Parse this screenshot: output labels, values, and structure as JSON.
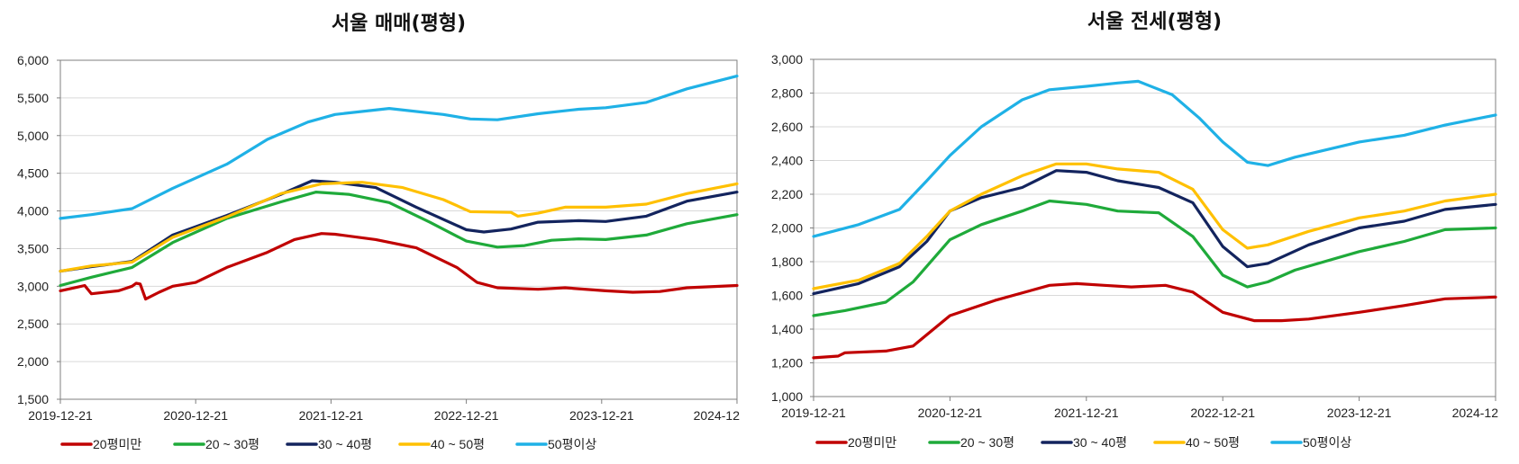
{
  "chart_data": [
    {
      "type": "line",
      "title": "서울 매매(평형)",
      "xlabel": "",
      "ylabel": "",
      "ylim": [
        1500,
        6000
      ],
      "yticks": [
        1500,
        2000,
        2500,
        3000,
        3500,
        4000,
        4500,
        5000,
        5500,
        6000
      ],
      "yticklabels": [
        "1,500",
        "2,000",
        "2,500",
        "3,000",
        "3,500",
        "4,000",
        "4,500",
        "5,000",
        "5,500",
        "6,000"
      ],
      "xlim": [
        2019.97,
        2024.97
      ],
      "xtick_positions": [
        2019.97,
        2020.97,
        2021.97,
        2022.97,
        2023.97,
        2024.97
      ],
      "xticklabels": [
        "2019-12-21",
        "2020-12-21",
        "2021-12-21",
        "2022-12-21",
        "2023-12-21",
        "2024-12"
      ],
      "grid": true,
      "legend_position": "bottom",
      "series": [
        {
          "name": "20평미만",
          "color": "#C00000",
          "x": [
            2019.97,
            2020.1,
            2020.15,
            2020.2,
            2020.4,
            2020.5,
            2020.53,
            2020.56,
            2020.6,
            2020.7,
            2020.8,
            2020.97,
            2021.2,
            2021.5,
            2021.7,
            2021.9,
            2022.0,
            2022.3,
            2022.6,
            2022.9,
            2023.05,
            2023.2,
            2023.5,
            2023.7,
            2024.0,
            2024.2,
            2024.4,
            2024.6,
            2024.97
          ],
          "values": [
            2940,
            2990,
            3010,
            2900,
            2940,
            3000,
            3040,
            3030,
            2830,
            2920,
            3000,
            3050,
            3250,
            3450,
            3620,
            3700,
            3690,
            3620,
            3510,
            3250,
            3050,
            2980,
            2960,
            2980,
            2940,
            2920,
            2930,
            2980,
            3010
          ]
        },
        {
          "name": "20 ~ 30평",
          "color": "#1FAA3A",
          "x": [
            2019.97,
            2020.2,
            2020.5,
            2020.8,
            2021.2,
            2021.6,
            2021.86,
            2022.1,
            2022.4,
            2022.7,
            2022.97,
            2023.2,
            2023.4,
            2023.6,
            2023.8,
            2024.0,
            2024.3,
            2024.6,
            2024.97
          ],
          "values": [
            3010,
            3120,
            3250,
            3580,
            3900,
            4120,
            4250,
            4220,
            4110,
            3850,
            3600,
            3520,
            3540,
            3610,
            3630,
            3620,
            3680,
            3830,
            3950
          ]
        },
        {
          "name": "30 ~ 40평",
          "color": "#13245E",
          "x": [
            2019.97,
            2020.2,
            2020.5,
            2020.8,
            2021.2,
            2021.6,
            2021.83,
            2022.0,
            2022.3,
            2022.6,
            2022.97,
            2023.1,
            2023.3,
            2023.5,
            2023.8,
            2024.0,
            2024.3,
            2024.6,
            2024.97
          ],
          "values": [
            3200,
            3260,
            3330,
            3680,
            3940,
            4220,
            4400,
            4380,
            4310,
            4050,
            3750,
            3720,
            3760,
            3850,
            3870,
            3860,
            3930,
            4130,
            4250
          ]
        },
        {
          "name": "40 ~ 50평",
          "color": "#FFC000",
          "x": [
            2019.97,
            2020.2,
            2020.5,
            2020.8,
            2021.2,
            2021.6,
            2021.9,
            2022.2,
            2022.5,
            2022.8,
            2023.0,
            2023.3,
            2023.35,
            2023.5,
            2023.7,
            2024.0,
            2024.3,
            2024.6,
            2024.97
          ],
          "values": [
            3200,
            3270,
            3320,
            3650,
            3920,
            4230,
            4360,
            4380,
            4310,
            4150,
            3990,
            3980,
            3930,
            3970,
            4050,
            4050,
            4090,
            4230,
            4360
          ]
        },
        {
          "name": "50평이상",
          "color": "#1FB1E6",
          "x": [
            2019.97,
            2020.2,
            2020.5,
            2020.8,
            2021.2,
            2021.5,
            2021.8,
            2022.0,
            2022.4,
            2022.8,
            2023.0,
            2023.2,
            2023.5,
            2023.8,
            2024.0,
            2024.3,
            2024.6,
            2024.97
          ],
          "values": [
            3900,
            3950,
            4030,
            4300,
            4620,
            4950,
            5180,
            5280,
            5360,
            5280,
            5220,
            5210,
            5290,
            5350,
            5370,
            5440,
            5620,
            5790
          ]
        }
      ]
    },
    {
      "type": "line",
      "title": "서울 전세(평형)",
      "xlabel": "",
      "ylabel": "",
      "ylim": [
        1000,
        3000
      ],
      "yticks": [
        1000,
        1200,
        1400,
        1600,
        1800,
        2000,
        2200,
        2400,
        2600,
        2800,
        3000
      ],
      "yticklabels": [
        "1,000",
        "1,200",
        "1,400",
        "1,600",
        "1,800",
        "2,000",
        "2,200",
        "2,400",
        "2,600",
        "2,800",
        "3,000"
      ],
      "xlim": [
        2019.97,
        2024.97
      ],
      "xtick_positions": [
        2019.97,
        2020.97,
        2021.97,
        2022.97,
        2023.97,
        2024.97
      ],
      "xticklabels": [
        "2019-12-21",
        "2020-12-21",
        "2021-12-21",
        "2022-12-21",
        "2023-12-21",
        "2024-12"
      ],
      "grid": true,
      "legend_position": "bottom",
      "series": [
        {
          "name": "20평미만",
          "color": "#C00000",
          "x": [
            2019.97,
            2020.15,
            2020.2,
            2020.5,
            2020.7,
            2020.97,
            2021.3,
            2021.7,
            2021.9,
            2022.1,
            2022.3,
            2022.55,
            2022.75,
            2022.97,
            2023.2,
            2023.4,
            2023.6,
            2023.97,
            2024.3,
            2024.6,
            2024.97
          ],
          "values": [
            1230,
            1240,
            1260,
            1270,
            1300,
            1480,
            1570,
            1660,
            1670,
            1660,
            1650,
            1660,
            1620,
            1500,
            1450,
            1450,
            1460,
            1500,
            1540,
            1580,
            1590
          ]
        },
        {
          "name": "20 ~ 30평",
          "color": "#1FAA3A",
          "x": [
            2019.97,
            2020.2,
            2020.5,
            2020.7,
            2020.97,
            2021.2,
            2021.5,
            2021.7,
            2021.97,
            2022.2,
            2022.5,
            2022.75,
            2022.97,
            2023.15,
            2023.3,
            2023.5,
            2023.97,
            2024.3,
            2024.6,
            2024.97
          ],
          "values": [
            1480,
            1510,
            1560,
            1680,
            1930,
            2020,
            2100,
            2160,
            2140,
            2100,
            2090,
            1950,
            1720,
            1650,
            1680,
            1750,
            1860,
            1920,
            1990,
            2000
          ]
        },
        {
          "name": "30 ~ 40평",
          "color": "#13245E",
          "x": [
            2019.97,
            2020.3,
            2020.6,
            2020.8,
            2020.97,
            2021.2,
            2021.5,
            2021.75,
            2021.97,
            2022.2,
            2022.5,
            2022.75,
            2022.97,
            2023.15,
            2023.3,
            2023.6,
            2023.97,
            2024.3,
            2024.6,
            2024.97
          ],
          "values": [
            1610,
            1670,
            1770,
            1920,
            2100,
            2180,
            2240,
            2340,
            2330,
            2280,
            2240,
            2150,
            1890,
            1770,
            1790,
            1900,
            2000,
            2040,
            2110,
            2140
          ]
        },
        {
          "name": "40 ~ 50평",
          "color": "#FFC000",
          "x": [
            2019.97,
            2020.3,
            2020.6,
            2020.8,
            2020.97,
            2021.2,
            2021.5,
            2021.75,
            2021.97,
            2022.2,
            2022.5,
            2022.75,
            2022.97,
            2023.15,
            2023.3,
            2023.6,
            2023.97,
            2024.3,
            2024.6,
            2024.97
          ],
          "values": [
            1640,
            1690,
            1790,
            1950,
            2100,
            2200,
            2310,
            2380,
            2380,
            2350,
            2330,
            2230,
            1990,
            1880,
            1900,
            1980,
            2060,
            2100,
            2160,
            2200
          ]
        },
        {
          "name": "50평이상",
          "color": "#1FB1E6",
          "x": [
            2019.97,
            2020.3,
            2020.6,
            2020.8,
            2020.97,
            2021.2,
            2021.5,
            2021.7,
            2021.97,
            2022.2,
            2022.35,
            2022.6,
            2022.8,
            2022.97,
            2023.15,
            2023.3,
            2023.5,
            2023.97,
            2024.3,
            2024.6,
            2024.97
          ],
          "values": [
            1950,
            2020,
            2110,
            2280,
            2430,
            2600,
            2760,
            2820,
            2840,
            2860,
            2870,
            2790,
            2650,
            2510,
            2390,
            2370,
            2420,
            2510,
            2550,
            2610,
            2670
          ]
        }
      ]
    }
  ]
}
